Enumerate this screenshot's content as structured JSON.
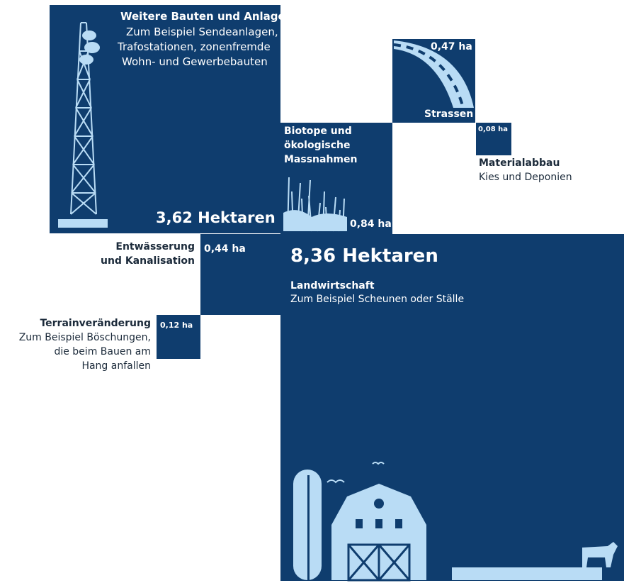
{
  "colors": {
    "square": "#0f3d6e",
    "illustration": "#b9dcf5",
    "text_dark": "#1b2a3a"
  },
  "chart_data": {
    "type": "area-squares",
    "unit": "ha",
    "items": [
      {
        "key": "weitere",
        "value": 3.62,
        "value_label": "3,62 Hektaren",
        "title": "Weitere Bauten und Anlagen",
        "desc_lines": [
          "Zum Beispiel Sendeanlagen,",
          "Trafostationen, zonenfremde",
          "Wohn- und Gewerbebauten"
        ],
        "icon": "transmission-tower-icon"
      },
      {
        "key": "landwirtschaft",
        "value": 8.36,
        "value_label": "8,36 Hektaren",
        "title": "Landwirtschaft",
        "desc_lines": [
          "Zum Beispiel Scheunen oder Ställe"
        ],
        "icon": "farm-barn-icon"
      },
      {
        "key": "biotope",
        "value": 0.84,
        "value_label": "0,84 ha",
        "title_lines": [
          "Biotope und",
          "ökologische",
          "Massnahmen"
        ],
        "icon": "reeds-icon"
      },
      {
        "key": "strassen",
        "value": 0.47,
        "value_label": "0,47 ha",
        "title": "Strassen",
        "icon": "road-icon"
      },
      {
        "key": "material",
        "value": 0.08,
        "value_label": "0,08 ha",
        "title": "Materialabbau",
        "desc_lines": [
          "Kies und Deponien"
        ]
      },
      {
        "key": "entwaesserung",
        "value": 0.44,
        "value_label": "0,44 ha",
        "title_lines": [
          "Entwässerung",
          "und Kanalisation"
        ]
      },
      {
        "key": "terrain",
        "value": 0.12,
        "value_label": "0,12 ha",
        "title": "Terrainveränderung",
        "desc_lines": [
          "Zum Beispiel Böschungen,",
          "die beim Bauen am",
          "Hang anfallen"
        ]
      }
    ]
  }
}
